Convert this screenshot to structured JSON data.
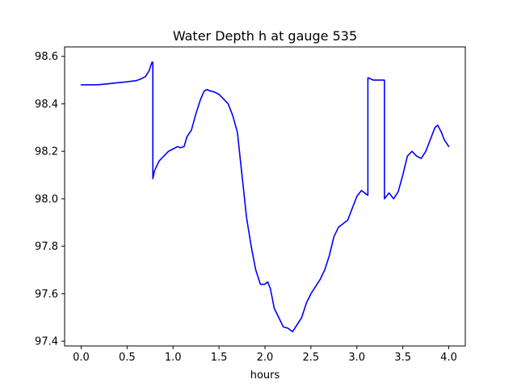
{
  "chart_data": {
    "type": "line",
    "title": "Water Depth h at gauge 535",
    "xlabel": "hours",
    "ylabel": "",
    "xlim": [
      -0.18,
      4.18
    ],
    "ylim": [
      97.38,
      98.64
    ],
    "xticks": [
      0.0,
      0.5,
      1.0,
      1.5,
      2.0,
      2.5,
      3.0,
      3.5,
      4.0
    ],
    "xtick_labels": [
      "0.0",
      "0.5",
      "1.0",
      "1.5",
      "2.0",
      "2.5",
      "3.0",
      "3.5",
      "4.0"
    ],
    "yticks": [
      97.4,
      97.6,
      97.8,
      98.0,
      98.2,
      98.4,
      98.6
    ],
    "ytick_labels": [
      "97.4",
      "97.6",
      "97.8",
      "98.0",
      "98.2",
      "98.4",
      "98.6"
    ],
    "grid": false,
    "legend": "none",
    "series": [
      {
        "color": "#0000ff",
        "x": [
          0.0,
          0.1,
          0.2,
          0.3,
          0.4,
          0.5,
          0.6,
          0.65,
          0.7,
          0.74,
          0.77,
          0.78,
          0.78,
          0.8,
          0.85,
          0.9,
          0.95,
          1.0,
          1.05,
          1.08,
          1.12,
          1.15,
          1.2,
          1.25,
          1.3,
          1.34,
          1.37,
          1.4,
          1.45,
          1.5,
          1.55,
          1.6,
          1.65,
          1.7,
          1.75,
          1.8,
          1.85,
          1.9,
          1.95,
          2.0,
          2.03,
          2.06,
          2.1,
          2.15,
          2.2,
          2.25,
          2.3,
          2.35,
          2.4,
          2.45,
          2.5,
          2.55,
          2.6,
          2.65,
          2.7,
          2.75,
          2.8,
          2.85,
          2.9,
          2.95,
          3.0,
          3.05,
          3.1,
          3.12,
          3.12,
          3.18,
          3.25,
          3.3,
          3.3,
          3.35,
          3.38,
          3.4,
          3.45,
          3.5,
          3.55,
          3.6,
          3.65,
          3.7,
          3.75,
          3.8,
          3.85,
          3.88,
          3.92,
          3.95,
          4.0
        ],
        "y": [
          98.48,
          98.48,
          98.481,
          98.485,
          98.489,
          98.493,
          98.498,
          98.505,
          98.515,
          98.54,
          98.575,
          98.575,
          98.085,
          98.12,
          98.16,
          98.18,
          98.2,
          98.21,
          98.22,
          98.215,
          98.22,
          98.26,
          98.29,
          98.36,
          98.42,
          98.455,
          98.46,
          98.455,
          98.45,
          98.44,
          98.42,
          98.4,
          98.35,
          98.28,
          98.1,
          97.92,
          97.8,
          97.7,
          97.64,
          97.64,
          97.65,
          97.62,
          97.54,
          97.5,
          97.46,
          97.455,
          97.44,
          97.47,
          97.5,
          97.56,
          97.6,
          97.63,
          97.66,
          97.7,
          97.76,
          97.84,
          97.88,
          97.895,
          97.91,
          97.96,
          98.01,
          98.035,
          98.02,
          98.015,
          98.51,
          98.5,
          98.5,
          98.5,
          98.0,
          98.025,
          98.01,
          98.0,
          98.03,
          98.1,
          98.18,
          98.2,
          98.18,
          98.17,
          98.2,
          98.25,
          98.3,
          98.31,
          98.28,
          98.25,
          98.22
        ]
      }
    ]
  }
}
